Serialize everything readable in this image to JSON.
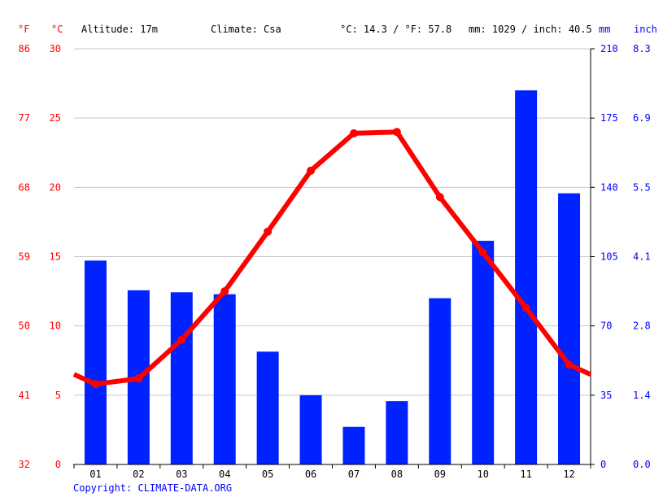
{
  "header": {
    "unit_f": "°F",
    "unit_c": "°C",
    "altitude": "Altitude: 17m",
    "climate": "Climate: Csa",
    "temp_avg": "°C: 14.3 / °F: 57.8",
    "precip_total": "mm: 1029 / inch: 40.5",
    "unit_mm": "mm",
    "unit_inch": "inch"
  },
  "footer": {
    "copyright": "Copyright: CLIMATE-DATA.ORG"
  },
  "colors": {
    "temperature": "#ff0000",
    "precipitation": "#0022ff",
    "grid": "#c8c8c8",
    "axis": "#000000"
  },
  "chart_data": {
    "type": "bar",
    "categories": [
      "01",
      "02",
      "03",
      "04",
      "05",
      "06",
      "07",
      "08",
      "09",
      "10",
      "11",
      "12"
    ],
    "series": [
      {
        "type": "bar",
        "axis": "right",
        "values": [
          103,
          88,
          87,
          86,
          57,
          35,
          19,
          32,
          84,
          113,
          189,
          137
        ]
      },
      {
        "type": "line",
        "axis": "left",
        "values": [
          5.8,
          6.2,
          9.0,
          12.5,
          16.8,
          21.2,
          23.9,
          24.0,
          19.3,
          15.3,
          11.3,
          7.2
        ]
      }
    ],
    "left_axis_c": {
      "ticks": [
        "30",
        "25",
        "20",
        "15",
        "10",
        "5",
        "0"
      ],
      "ylim": [
        0,
        30
      ]
    },
    "left_axis_f": {
      "ticks": [
        "86",
        "77",
        "68",
        "59",
        "50",
        "41",
        "32"
      ]
    },
    "right_axis_mm": {
      "ticks": [
        "210",
        "175",
        "140",
        "105",
        "70",
        "35",
        "0"
      ],
      "ylim": [
        0,
        210
      ]
    },
    "right_axis_inch": {
      "ticks": [
        "8.3",
        "6.9",
        "5.5",
        "4.1",
        "2.8",
        "1.4",
        "0.0"
      ]
    },
    "grid": true
  }
}
